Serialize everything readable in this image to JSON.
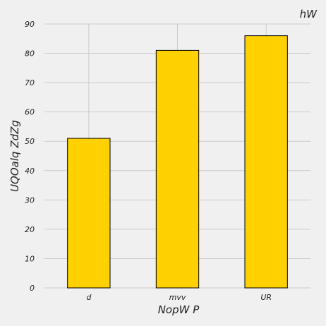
{
  "chart_data": {
    "type": "bar",
    "title": "hW",
    "xlabel": "NopW P",
    "ylabel": "UQOalq ZdZg",
    "categories": [
      "d",
      "mvv",
      "UR"
    ],
    "values": [
      51,
      81,
      86
    ],
    "ylim": [
      0,
      90
    ],
    "yticks": [
      "0",
      "10",
      "20",
      "30",
      "40",
      "50",
      "60",
      "70",
      "80",
      "90"
    ],
    "grid": true,
    "colors": {
      "bar": "#ffd100",
      "bar_edge": "#000000",
      "grid": "#cbcbcb",
      "background": "#f0f0f0"
    }
  }
}
